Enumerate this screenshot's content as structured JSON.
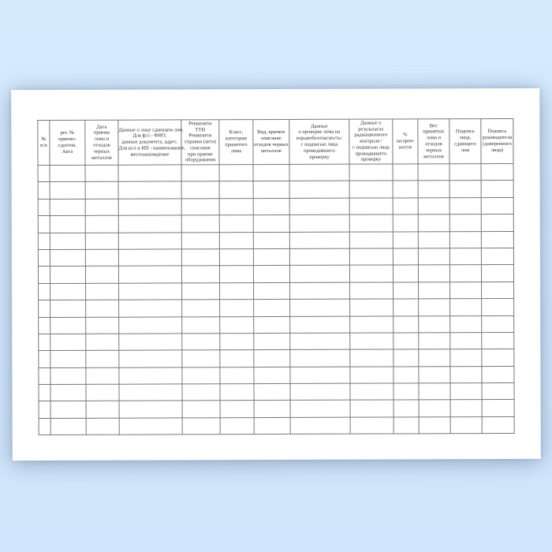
{
  "page": {
    "background_color": "#d3e8fd",
    "sheet_color": "#ffffff"
  },
  "table": {
    "grid_color": "#787878",
    "text_color": "#2e2e2e",
    "empty_row_count": 16,
    "columns": [
      {
        "id": "row-number",
        "header_lines": [
          "№",
          "п/п"
        ]
      },
      {
        "id": "act-reg-number",
        "header_lines": [
          "рег. №",
          "приемо-",
          "сдаточн.",
          "Акта"
        ]
      },
      {
        "id": "acceptance-date",
        "header_lines": [
          "Дата",
          "приема",
          "лома и",
          "отходов",
          "черных",
          "металлов"
        ]
      },
      {
        "id": "scrap-seller-details",
        "header_lines": [
          "Данные о лице сдающем лом.",
          "Для ф/л - ФИО,",
          "данные документа, адрес.",
          "Для ю/л и ИП - наименование,",
          "местонахождение"
        ]
      },
      {
        "id": "ttn-writeoff-details",
        "header_lines": [
          "Реквизиты",
          "ТТН",
          "Реквизиты",
          "справки (акта)",
          "списания",
          "при приеме",
          "оборудования"
        ]
      },
      {
        "id": "scrap-class-category",
        "header_lines": [
          "Класс,",
          "категория",
          "принятого",
          "лома"
        ]
      },
      {
        "id": "scrap-type-description",
        "header_lines": [
          "Вид, краткое",
          "описание",
          "отходов черных",
          "металлов"
        ]
      },
      {
        "id": "explosion-safety-check",
        "header_lines": [
          "Данные",
          "о проверке лома на",
          "взрывобезопасность/",
          "с подписью лица",
          "проводившего",
          "проверку"
        ]
      },
      {
        "id": "radiation-control-results",
        "header_lines": [
          "Данные о",
          "результатах",
          "радиационного",
          "контроля /",
          "с подписью лица",
          "проводившего",
          "проверку"
        ]
      },
      {
        "id": "contamination-percent",
        "header_lines": [
          "%",
          "засорен-",
          "ности"
        ]
      },
      {
        "id": "accepted-scrap-weight",
        "header_lines": [
          "Вес",
          "принятых",
          "лома и",
          "отходов",
          "черных",
          "металлов"
        ]
      },
      {
        "id": "seller-signature",
        "header_lines": [
          "Подпись",
          "лица,",
          "сдающего",
          "лом"
        ]
      },
      {
        "id": "manager-signature",
        "header_lines": [
          "Подпись",
          "руководителя",
          "(доверенного",
          "лица)"
        ]
      }
    ]
  }
}
